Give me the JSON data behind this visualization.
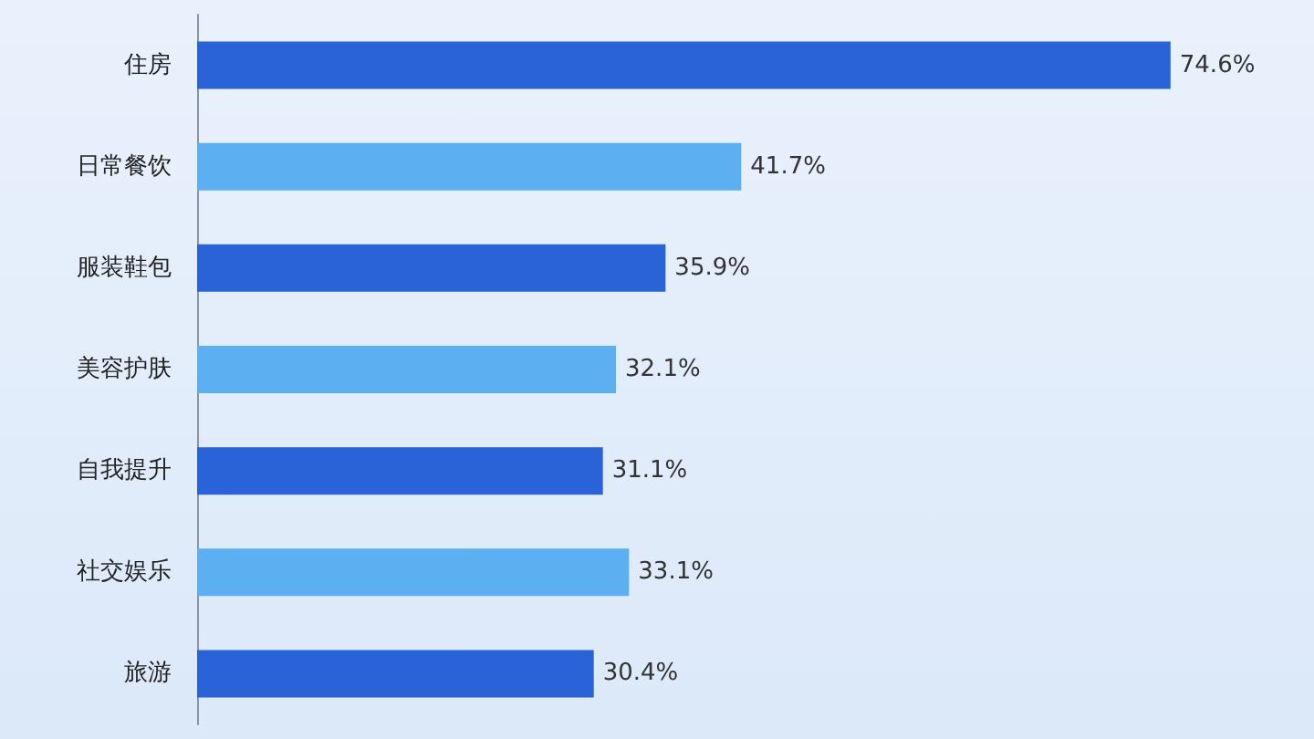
{
  "chart_data": {
    "type": "bar",
    "orientation": "horizontal",
    "categories": [
      "住房",
      "日常餐饮",
      "服装鞋包",
      "美容护肤",
      "自我提升",
      "社交娱乐",
      "旅游"
    ],
    "values": [
      74.6,
      41.7,
      35.9,
      32.1,
      31.1,
      33.1,
      30.4
    ],
    "colors": [
      "#2a63d8",
      "#5cb0f2",
      "#2a63d8",
      "#5cb0f2",
      "#2a63d8",
      "#5cb0f2",
      "#2a63d8"
    ],
    "value_labels": [
      "74.6%",
      "41.7%",
      "35.9%",
      "32.1%",
      "31.1%",
      "33.1%",
      "30.4%"
    ],
    "tick_labels": "y",
    "grid": false
  }
}
